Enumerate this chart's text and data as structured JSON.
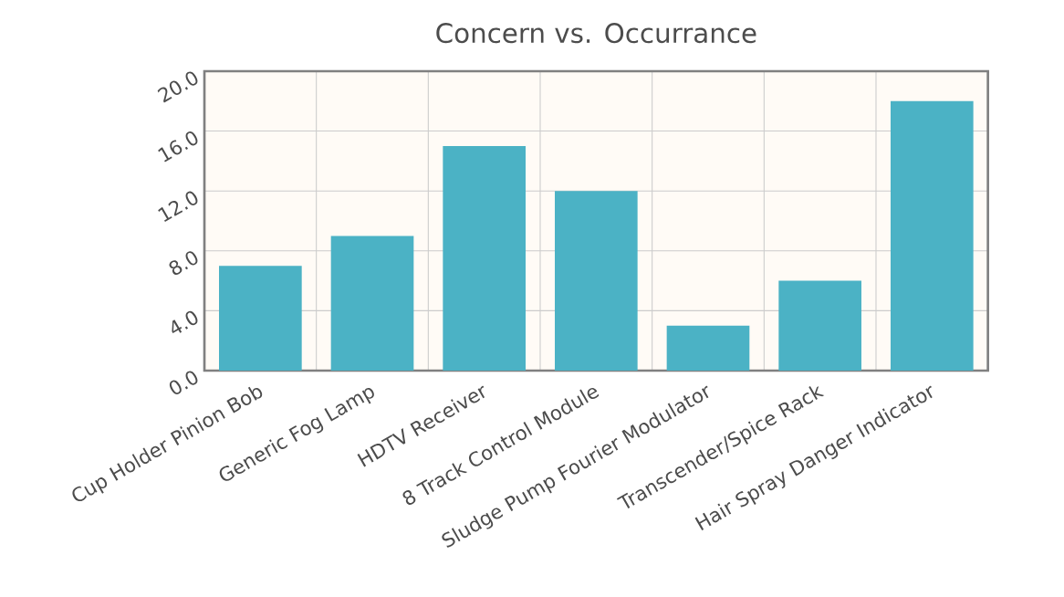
{
  "chart_data": {
    "type": "bar",
    "title": "Concern vs. Occurrance",
    "categories": [
      "Cup Holder Pinion Bob",
      "Generic Fog Lamp",
      "HDTV Receiver",
      "8 Track Control Module",
      "Sludge Pump Fourier Modulator",
      "Transcender/Spice Rack",
      "Hair Spray Danger Indicator"
    ],
    "values": [
      7,
      9,
      15,
      12,
      3,
      6,
      18
    ],
    "color": "#4bb2c5",
    "ylim": [
      0,
      20
    ],
    "yticks": [
      {
        "value": 0,
        "label": "0.0"
      },
      {
        "value": 4,
        "label": "4.0"
      },
      {
        "value": 8,
        "label": "8.0"
      },
      {
        "value": 12,
        "label": "12.0"
      },
      {
        "value": 16,
        "label": "16.0"
      },
      {
        "value": 20,
        "label": "20.0"
      }
    ],
    "grid": true
  }
}
